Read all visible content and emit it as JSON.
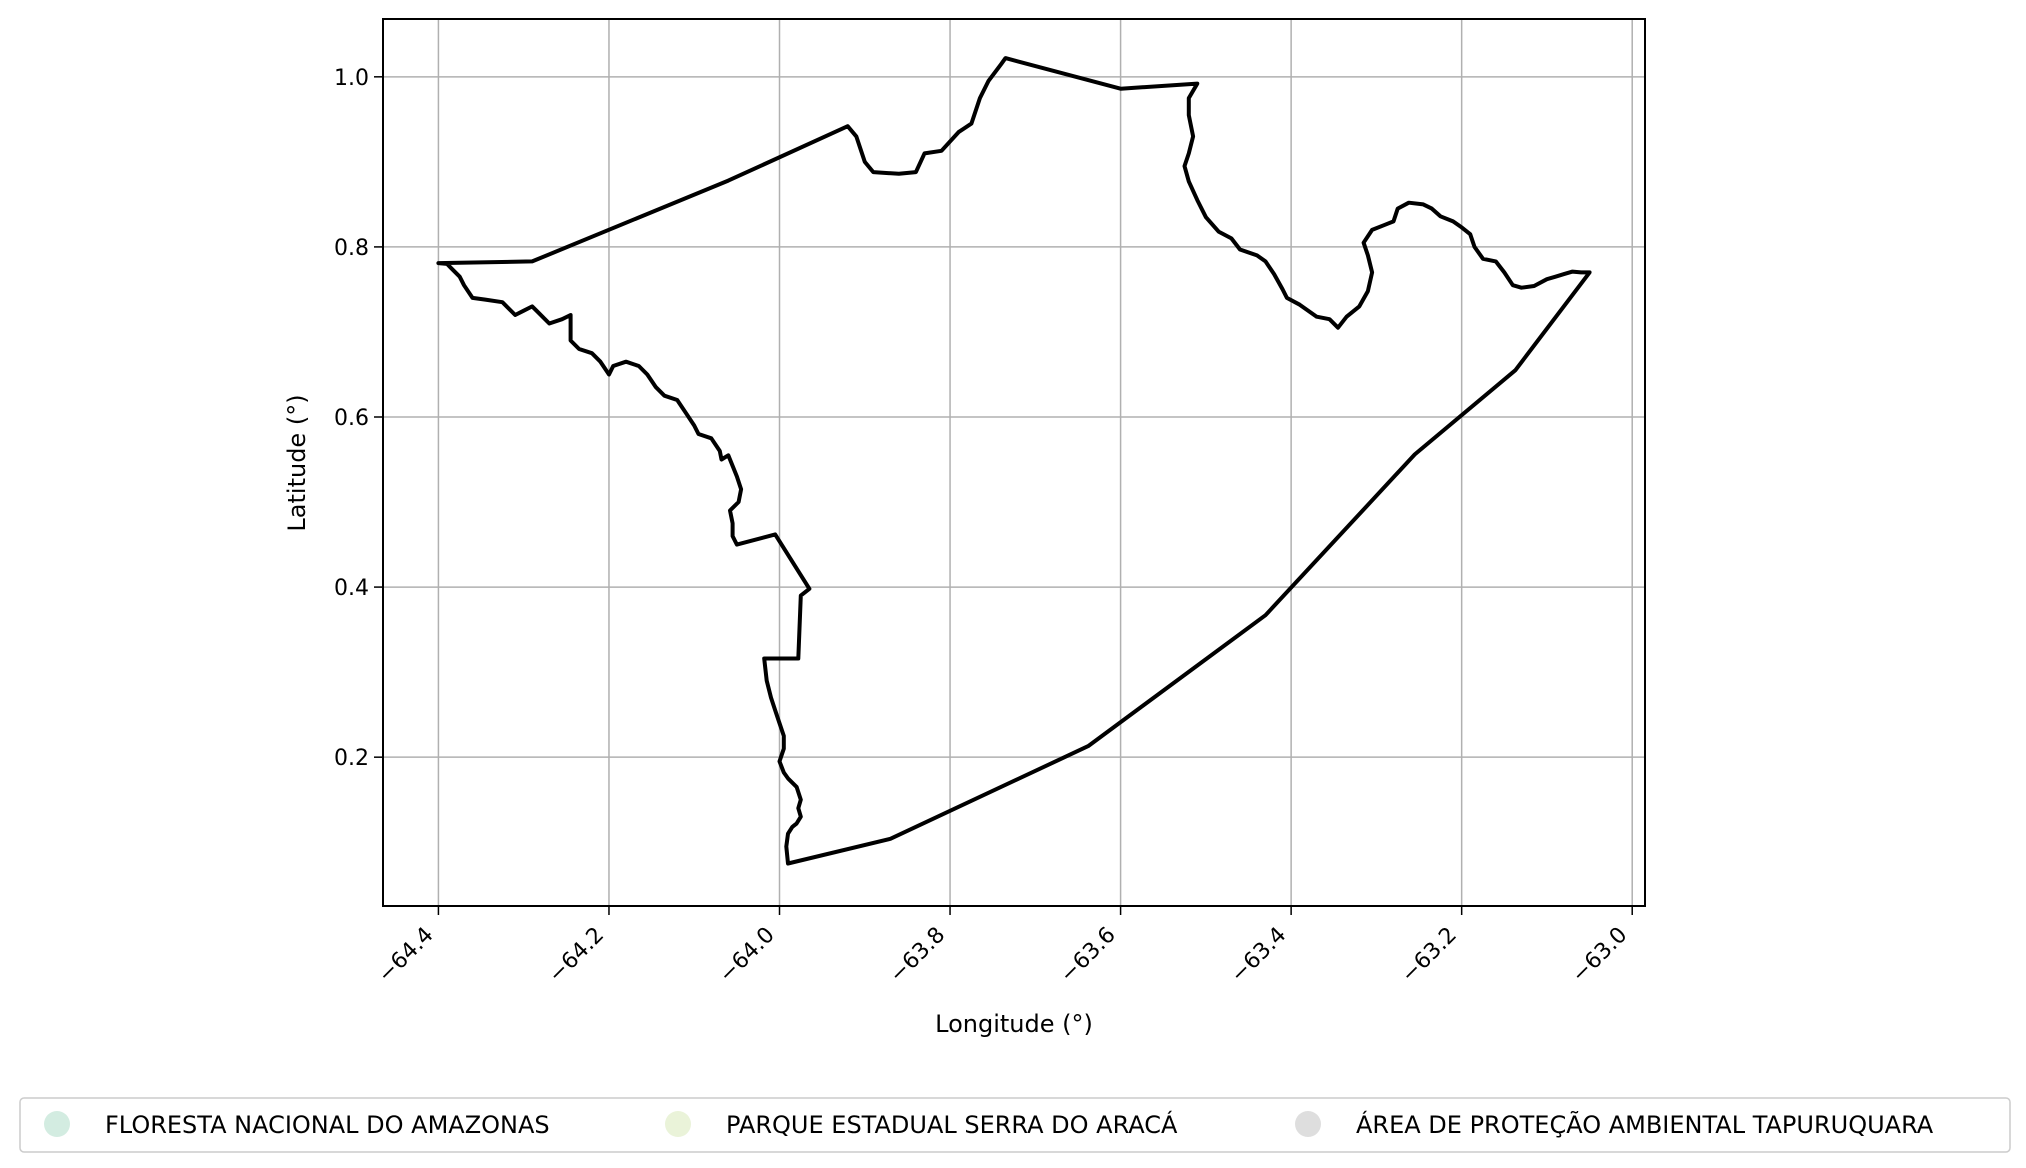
{
  "chart_data": {
    "type": "map",
    "xlabel": "Longitude (°)",
    "ylabel": "Latitude (°)",
    "xlim": [
      -64.465,
      -62.985
    ],
    "ylim": [
      0.025,
      1.068
    ],
    "grid": true,
    "x_ticks": [
      {
        "value": -64.4,
        "label": "−64.4"
      },
      {
        "value": -64.2,
        "label": "−64.2"
      },
      {
        "value": -64.0,
        "label": "−64.0"
      },
      {
        "value": -63.8,
        "label": "−63.8"
      },
      {
        "value": -63.6,
        "label": "−63.6"
      },
      {
        "value": -63.4,
        "label": "−63.4"
      },
      {
        "value": -63.2,
        "label": "−63.2"
      },
      {
        "value": -63.0,
        "label": "−63.0"
      }
    ],
    "y_ticks": [
      {
        "value": 0.2,
        "label": "0.2"
      },
      {
        "value": 0.4,
        "label": "0.4"
      },
      {
        "value": 0.6,
        "label": "0.6"
      },
      {
        "value": 0.8,
        "label": "0.8"
      },
      {
        "value": 1.0,
        "label": "1.0"
      }
    ],
    "boundary": {
      "color": "#000000",
      "coordinates": [
        [
          -64.4,
          0.781
        ],
        [
          -64.29,
          0.783
        ],
        [
          -64.06,
          0.878
        ],
        [
          -63.92,
          0.942
        ],
        [
          -63.91,
          0.93
        ],
        [
          -63.9,
          0.9
        ],
        [
          -63.89,
          0.888
        ],
        [
          -63.86,
          0.886
        ],
        [
          -63.84,
          0.888
        ],
        [
          -63.83,
          0.91
        ],
        [
          -63.81,
          0.913
        ],
        [
          -63.79,
          0.935
        ],
        [
          -63.775,
          0.945
        ],
        [
          -63.765,
          0.975
        ],
        [
          -63.755,
          0.995
        ],
        [
          -63.74,
          1.015
        ],
        [
          -63.735,
          1.022
        ],
        [
          -63.6,
          0.986
        ],
        [
          -63.51,
          0.992
        ],
        [
          -63.52,
          0.975
        ],
        [
          -63.52,
          0.955
        ],
        [
          -63.515,
          0.93
        ],
        [
          -63.52,
          0.91
        ],
        [
          -63.525,
          0.895
        ],
        [
          -63.52,
          0.877
        ],
        [
          -63.51,
          0.855
        ],
        [
          -63.5,
          0.835
        ],
        [
          -63.485,
          0.818
        ],
        [
          -63.47,
          0.81
        ],
        [
          -63.46,
          0.797
        ],
        [
          -63.44,
          0.79
        ],
        [
          -63.43,
          0.783
        ],
        [
          -63.42,
          0.768
        ],
        [
          -63.41,
          0.75
        ],
        [
          -63.405,
          0.74
        ],
        [
          -63.39,
          0.732
        ],
        [
          -63.38,
          0.725
        ],
        [
          -63.37,
          0.718
        ],
        [
          -63.355,
          0.715
        ],
        [
          -63.345,
          0.705
        ],
        [
          -63.335,
          0.718
        ],
        [
          -63.32,
          0.73
        ],
        [
          -63.31,
          0.748
        ],
        [
          -63.305,
          0.77
        ],
        [
          -63.31,
          0.79
        ],
        [
          -63.315,
          0.805
        ],
        [
          -63.305,
          0.82
        ],
        [
          -63.29,
          0.826
        ],
        [
          -63.28,
          0.83
        ],
        [
          -63.275,
          0.845
        ],
        [
          -63.262,
          0.852
        ],
        [
          -63.245,
          0.85
        ],
        [
          -63.235,
          0.845
        ],
        [
          -63.225,
          0.836
        ],
        [
          -63.21,
          0.83
        ],
        [
          -63.2,
          0.823
        ],
        [
          -63.19,
          0.815
        ],
        [
          -63.185,
          0.8
        ],
        [
          -63.175,
          0.786
        ],
        [
          -63.16,
          0.783
        ],
        [
          -63.15,
          0.77
        ],
        [
          -63.14,
          0.755
        ],
        [
          -63.13,
          0.752
        ],
        [
          -63.115,
          0.754
        ],
        [
          -63.1,
          0.762
        ],
        [
          -63.09,
          0.765
        ],
        [
          -63.08,
          0.768
        ],
        [
          -63.07,
          0.771
        ],
        [
          -63.06,
          0.77
        ],
        [
          -63.05,
          0.77
        ],
        [
          -63.137,
          0.655
        ],
        [
          -63.255,
          0.556
        ],
        [
          -63.43,
          0.367
        ],
        [
          -63.638,
          0.213
        ],
        [
          -63.87,
          0.104
        ],
        [
          -63.99,
          0.075
        ],
        [
          -63.992,
          0.095
        ],
        [
          -63.99,
          0.11
        ],
        [
          -63.985,
          0.118
        ],
        [
          -63.98,
          0.122
        ],
        [
          -63.975,
          0.13
        ],
        [
          -63.978,
          0.14
        ],
        [
          -63.975,
          0.15
        ],
        [
          -63.98,
          0.165
        ],
        [
          -63.99,
          0.175
        ],
        [
          -63.995,
          0.182
        ],
        [
          -64.0,
          0.195
        ],
        [
          -63.995,
          0.21
        ],
        [
          -63.995,
          0.225
        ],
        [
          -64.0,
          0.24
        ],
        [
          -64.005,
          0.255
        ],
        [
          -64.01,
          0.27
        ],
        [
          -64.015,
          0.29
        ],
        [
          -64.018,
          0.316
        ],
        [
          -63.994,
          0.316
        ],
        [
          -63.978,
          0.316
        ],
        [
          -63.975,
          0.39
        ],
        [
          -63.965,
          0.398
        ],
        [
          -64.005,
          0.462
        ],
        [
          -64.05,
          0.45
        ],
        [
          -64.055,
          0.46
        ],
        [
          -64.055,
          0.475
        ],
        [
          -64.058,
          0.49
        ],
        [
          -64.048,
          0.5
        ],
        [
          -64.045,
          0.515
        ],
        [
          -64.05,
          0.53
        ],
        [
          -64.06,
          0.555
        ],
        [
          -64.068,
          0.55
        ],
        [
          -64.07,
          0.56
        ],
        [
          -64.08,
          0.575
        ],
        [
          -64.095,
          0.58
        ],
        [
          -64.1,
          0.59
        ],
        [
          -64.11,
          0.605
        ],
        [
          -64.12,
          0.62
        ],
        [
          -64.135,
          0.625
        ],
        [
          -64.145,
          0.635
        ],
        [
          -64.155,
          0.65
        ],
        [
          -64.165,
          0.66
        ],
        [
          -64.18,
          0.665
        ],
        [
          -64.195,
          0.66
        ],
        [
          -64.2,
          0.65
        ],
        [
          -64.21,
          0.665
        ],
        [
          -64.22,
          0.675
        ],
        [
          -64.235,
          0.68
        ],
        [
          -64.245,
          0.69
        ],
        [
          -64.245,
          0.72
        ],
        [
          -64.255,
          0.715
        ],
        [
          -64.27,
          0.71
        ],
        [
          -64.285,
          0.725
        ],
        [
          -64.29,
          0.73
        ],
        [
          -64.3,
          0.725
        ],
        [
          -64.31,
          0.72
        ],
        [
          -64.325,
          0.735
        ],
        [
          -64.345,
          0.738
        ],
        [
          -64.36,
          0.74
        ],
        [
          -64.37,
          0.755
        ],
        [
          -64.375,
          0.765
        ],
        [
          -64.385,
          0.775
        ],
        [
          -64.39,
          0.78
        ],
        [
          -64.4,
          0.781
        ]
      ]
    },
    "legend": {
      "placement": "bottom",
      "items": [
        {
          "label": "FLORESTA NACIONAL DO AMAZONAS",
          "color": "#d3ece1"
        },
        {
          "label": "PARQUE ESTADUAL SERRA DO ARACÁ",
          "color": "#eaf3d9"
        },
        {
          "label": "ÁREA DE PROTEÇÃO AMBIENTAL TAPURUQUARA",
          "color": "#dedede"
        }
      ]
    }
  }
}
